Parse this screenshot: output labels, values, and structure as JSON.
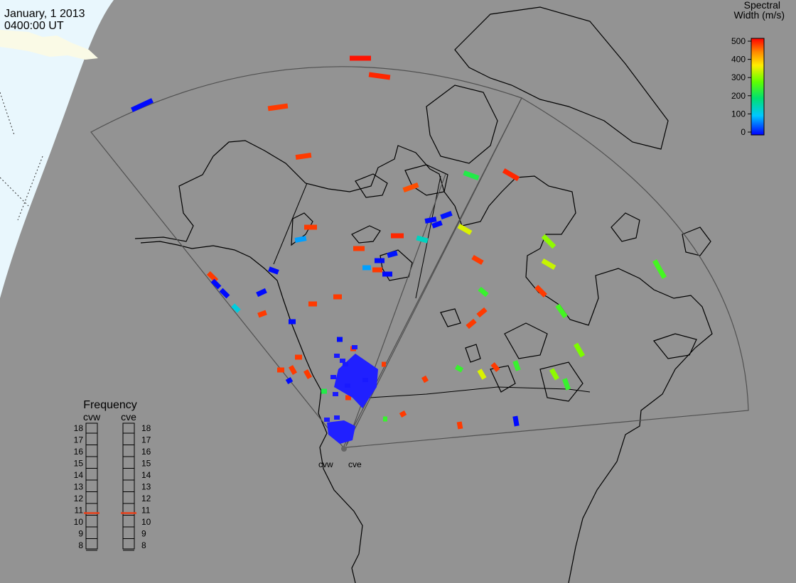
{
  "header": {
    "date": "January, 1 2013",
    "time": "0400:00 UT"
  },
  "colors": {
    "background": "#939393",
    "daylight": "#e9f7fd",
    "land_line": "#000000",
    "fov_line": "#555555"
  },
  "colorbar": {
    "title_line1": "Spectral",
    "title_line2": "Width (m/s)",
    "ticks": [
      "500",
      "400",
      "300",
      "200",
      "100",
      "0"
    ],
    "min": 0,
    "max": 500
  },
  "radars": [
    {
      "code": "cvw",
      "label": "cvw"
    },
    {
      "code": "cve",
      "label": "cve"
    }
  ],
  "frequency": {
    "title": "Frequency",
    "panels": [
      {
        "name": "cvw",
        "selected_mhz": 10.7
      },
      {
        "name": "cve",
        "selected_mhz": 10.7
      }
    ],
    "ticks": [
      "18",
      "17",
      "16",
      "15",
      "14",
      "13",
      "12",
      "11",
      "10",
      "9",
      "8"
    ]
  },
  "scatter": [
    {
      "color": "#0000ff",
      "w": 1
    },
    {
      "color": "#ff0000",
      "w": 500
    }
  ]
}
